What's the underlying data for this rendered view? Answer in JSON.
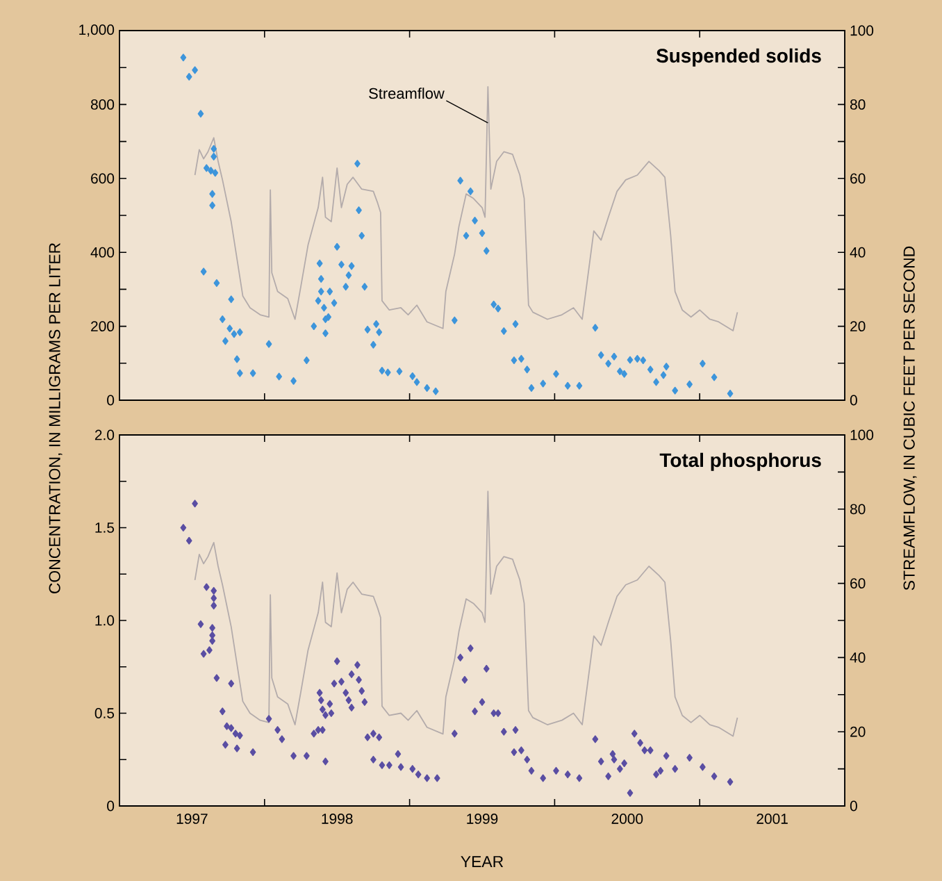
{
  "chart_data": [
    {
      "type": "scatter",
      "title": "Suspended solids",
      "ylabel": "CONCENTRATION, IN MILLIGRAMS PER LITER",
      "y2label": "STREAMFLOW, IN CUBIC FEET PER SECOND",
      "tick_labels": "y",
      "xlim": [
        1997,
        2002
      ],
      "xticks": [
        {
          "value": 1998,
          "label": null
        },
        {
          "value": 1999,
          "label": null
        },
        {
          "value": 2000,
          "label": null
        },
        {
          "value": 2001,
          "label": null
        }
      ],
      "ylim": [
        0,
        1000
      ],
      "yticks": [
        0,
        {
          "value": 100,
          "label": null
        },
        200,
        {
          "value": 300,
          "label": null
        },
        400,
        {
          "value": 500,
          "label": null
        },
        600,
        {
          "value": 700,
          "label": null
        },
        800,
        {
          "value": 900,
          "label": null
        },
        {
          "value": 1000,
          "label": "1,000"
        }
      ],
      "y2lim": [
        0,
        100
      ],
      "y2ticks": [
        0,
        {
          "value": 10,
          "label": null
        },
        20,
        {
          "value": 30,
          "label": null
        },
        40,
        {
          "value": 50,
          "label": null
        },
        60,
        {
          "value": 70,
          "label": null
        },
        80,
        {
          "value": 90,
          "label": null
        },
        100
      ],
      "series": [
        {
          "marker": "diamond",
          "color": "#3d95db",
          "x": [
            1997.44,
            1997.48,
            1997.52,
            1997.56,
            1997.65,
            1997.65,
            1997.6,
            1997.63,
            1997.66,
            1997.64,
            1997.64,
            1997.58,
            1997.67,
            1997.77,
            1997.71,
            1997.76,
            1997.79,
            1997.83,
            1997.73,
            1997.81,
            1997.83,
            1997.92,
            1998.03,
            1998.1,
            1998.2,
            1998.29,
            1998.34,
            1998.38,
            1998.39,
            1998.39,
            1998.37,
            1998.41,
            1998.42,
            1998.42,
            1998.44,
            1998.45,
            1998.48,
            1998.5,
            1998.53,
            1998.6,
            1998.58,
            1998.56,
            1998.64,
            1998.65,
            1998.67,
            1998.69,
            1998.71,
            1998.75,
            1998.77,
            1998.79,
            1998.81,
            1998.85,
            1998.93,
            1999.02,
            1999.05,
            1999.12,
            1999.18,
            1999.31,
            1999.35,
            1999.42,
            1999.45,
            1999.39,
            1999.5,
            1999.53,
            1999.58,
            1999.61,
            1999.65,
            1999.73,
            1999.72,
            1999.77,
            1999.81,
            1999.84,
            1999.92,
            2000.01,
            2000.09,
            2000.17,
            2000.28,
            2000.32,
            2000.37,
            2000.41,
            2000.45,
            2000.48,
            2000.52,
            2000.57,
            2000.61,
            2000.66,
            2000.7,
            2000.75,
            2000.77,
            2000.83,
            2000.93,
            2001.02,
            2001.1,
            2001.21
          ],
          "values": [
            927,
            875,
            893,
            775,
            680,
            659,
            628,
            621,
            615,
            558,
            527,
            348,
            317,
            273,
            219,
            194,
            179,
            184,
            160,
            111,
            73,
            73,
            152,
            64,
            52,
            108,
            200,
            370,
            328,
            294,
            269,
            250,
            219,
            181,
            225,
            294,
            263,
            415,
            367,
            363,
            338,
            307,
            640,
            514,
            445,
            307,
            191,
            150,
            206,
            184,
            80,
            75,
            78,
            65,
            49,
            33,
            24,
            216,
            594,
            565,
            486,
            445,
            452,
            404,
            259,
            248,
            187,
            206,
            108,
            112,
            83,
            33,
            45,
            71,
            39,
            39,
            196,
            122,
            99,
            118,
            78,
            71,
            109,
            112,
            108,
            83,
            49,
            68,
            91,
            26,
            43,
            99,
            62,
            18
          ]
        },
        {
          "type": "line",
          "axis": "y2",
          "marker": "none",
          "name": "Streamflow",
          "color": "#b3abab",
          "x": [
            1997.52,
            1997.55,
            1997.58,
            1997.61,
            1997.65,
            1997.68,
            1997.71,
            1997.77,
            1997.85,
            1997.9,
            1997.97,
            1998.03,
            1998.04,
            1998.05,
            1998.09,
            1998.16,
            1998.21,
            1998.25,
            1998.3,
            1998.37,
            1998.4,
            1998.42,
            1998.46,
            1998.5,
            1998.53,
            1998.57,
            1998.61,
            1998.67,
            1998.75,
            1998.78,
            1998.8,
            1998.81,
            1998.86,
            1998.94,
            1998.99,
            1999.05,
            1999.12,
            1999.23,
            1999.25,
            1999.31,
            1999.34,
            1999.39,
            1999.44,
            1999.5,
            1999.52,
            1999.54,
            1999.56,
            1999.6,
            1999.65,
            1999.71,
            1999.76,
            1999.79,
            1999.82,
            1999.85,
            1999.95,
            2000.05,
            2000.13,
            2000.19,
            2000.27,
            2000.32,
            2000.37,
            2000.43,
            2000.49,
            2000.57,
            2000.65,
            2000.72,
            2000.76,
            2000.8,
            2000.83,
            2000.88,
            2000.94,
            2001.0,
            2001.07,
            2001.13,
            2001.23,
            2001.26
          ],
          "values": [
            60.9,
            67.8,
            65.3,
            67.2,
            71,
            64.6,
            59.6,
            48.3,
            28.2,
            25,
            23.1,
            22.5,
            56.9,
            34.5,
            29.4,
            27.5,
            21.9,
            30.7,
            42,
            52.1,
            60.3,
            49.5,
            48.3,
            62.8,
            52.1,
            58.4,
            60.3,
            57.1,
            56.5,
            53.3,
            50.8,
            26.9,
            24.4,
            25,
            23.1,
            25.7,
            21.2,
            19.4,
            29.4,
            39.5,
            47,
            55.8,
            54.6,
            52.1,
            49.5,
            84.8,
            57.1,
            64.6,
            67.2,
            66.5,
            60.9,
            54.6,
            25.7,
            23.8,
            21.9,
            23.1,
            25,
            21.9,
            45.8,
            43.3,
            49.5,
            56.5,
            59.6,
            60.9,
            64.6,
            62.1,
            60.3,
            44.5,
            29.4,
            24.4,
            22.5,
            24.4,
            21.9,
            21.2,
            18.8,
            23.8
          ]
        }
      ]
    },
    {
      "type": "scatter",
      "title": "Total phosphorus",
      "xlabel": "YEAR",
      "xlim": [
        1997,
        2002
      ],
      "xticks": [
        {
          "value": 1997.5,
          "label": "1997"
        },
        {
          "value": 1998,
          "label": null
        },
        {
          "value": 1998.5,
          "label": "1998"
        },
        {
          "value": 1999,
          "label": null
        },
        {
          "value": 1999.5,
          "label": "1999"
        },
        {
          "value": 2000,
          "label": null
        },
        {
          "value": 2000.5,
          "label": "2000"
        },
        {
          "value": 2001,
          "label": null
        },
        {
          "value": 2001.5,
          "label": "2001"
        }
      ],
      "ylim": [
        0,
        2.0
      ],
      "yticks": [
        0,
        {
          "value": 0.25,
          "label": null
        },
        0.5,
        {
          "value": 0.75,
          "label": null
        },
        {
          "value": 1.0,
          "label": "1.0"
        },
        {
          "value": 1.25,
          "label": null
        },
        1.5,
        {
          "value": 1.75,
          "label": null
        },
        {
          "value": 2.0,
          "label": "2.0"
        }
      ],
      "y2lim": [
        0,
        100
      ],
      "y2ticks": [
        0,
        {
          "value": 10,
          "label": null
        },
        20,
        {
          "value": 30,
          "label": null
        },
        40,
        {
          "value": 50,
          "label": null
        },
        60,
        {
          "value": 70,
          "label": null
        },
        80,
        {
          "value": 90,
          "label": null
        },
        100
      ],
      "series": [
        {
          "marker": "diamond",
          "color": "#5a4ea3",
          "x": [
            1997.44,
            1997.48,
            1997.52,
            1997.6,
            1997.65,
            1997.65,
            1997.65,
            1997.56,
            1997.64,
            1997.64,
            1997.64,
            1997.62,
            1997.58,
            1997.67,
            1997.77,
            1997.71,
            1997.74,
            1997.77,
            1997.8,
            1997.83,
            1997.73,
            1997.81,
            1997.92,
            1998.03,
            1998.09,
            1998.12,
            1998.2,
            1998.29,
            1998.34,
            1998.37,
            1998.4,
            1998.38,
            1998.39,
            1998.4,
            1998.42,
            1998.42,
            1998.45,
            1998.46,
            1998.48,
            1998.53,
            1998.5,
            1998.56,
            1998.58,
            1998.6,
            1998.6,
            1998.64,
            1998.65,
            1998.67,
            1998.69,
            1998.71,
            1998.75,
            1998.79,
            1998.75,
            1998.81,
            1998.86,
            1998.92,
            1998.94,
            1999.02,
            1999.06,
            1999.12,
            1999.19,
            1999.31,
            1999.35,
            1999.38,
            1999.42,
            1999.45,
            1999.5,
            1999.53,
            1999.58,
            1999.61,
            1999.65,
            1999.73,
            1999.72,
            1999.77,
            1999.81,
            1999.84,
            1999.92,
            2000.01,
            2000.09,
            2000.17,
            2000.28,
            2000.32,
            2000.37,
            2000.4,
            2000.41,
            2000.45,
            2000.48,
            2000.52,
            2000.55,
            2000.59,
            2000.62,
            2000.66,
            2000.7,
            2000.73,
            2000.77,
            2000.83,
            2000.93,
            2001.02,
            2001.1,
            2001.21
          ],
          "values": [
            1.5,
            1.43,
            1.63,
            1.18,
            1.16,
            1.12,
            1.08,
            0.98,
            0.96,
            0.92,
            0.89,
            0.84,
            0.82,
            0.69,
            0.66,
            0.51,
            0.43,
            0.42,
            0.39,
            0.38,
            0.33,
            0.31,
            0.29,
            0.47,
            0.41,
            0.36,
            0.27,
            0.27,
            0.39,
            0.41,
            0.41,
            0.61,
            0.57,
            0.52,
            0.49,
            0.24,
            0.55,
            0.5,
            0.66,
            0.67,
            0.78,
            0.61,
            0.57,
            0.71,
            0.53,
            0.76,
            0.68,
            0.62,
            0.56,
            0.37,
            0.39,
            0.37,
            0.25,
            0.22,
            0.22,
            0.28,
            0.21,
            0.2,
            0.17,
            0.15,
            0.15,
            0.39,
            0.8,
            0.68,
            0.85,
            0.51,
            0.56,
            0.74,
            0.5,
            0.5,
            0.4,
            0.41,
            0.29,
            0.3,
            0.25,
            0.19,
            0.15,
            0.19,
            0.17,
            0.15,
            0.36,
            0.24,
            0.16,
            0.28,
            0.25,
            0.2,
            0.23,
            0.07,
            0.39,
            0.34,
            0.3,
            0.3,
            0.17,
            0.19,
            0.27,
            0.2,
            0.26,
            0.21,
            0.16,
            0.13
          ]
        },
        {
          "type": "line",
          "axis": "y2",
          "marker": "none",
          "color": "#b3abab",
          "x": [
            1997.52,
            1997.55,
            1997.58,
            1997.61,
            1997.65,
            1997.68,
            1997.71,
            1997.77,
            1997.85,
            1997.9,
            1997.97,
            1998.03,
            1998.04,
            1998.05,
            1998.09,
            1998.16,
            1998.21,
            1998.25,
            1998.3,
            1998.37,
            1998.4,
            1998.42,
            1998.46,
            1998.5,
            1998.53,
            1998.57,
            1998.61,
            1998.67,
            1998.75,
            1998.78,
            1998.8,
            1998.81,
            1998.86,
            1998.94,
            1998.99,
            1999.05,
            1999.12,
            1999.23,
            1999.25,
            1999.31,
            1999.34,
            1999.39,
            1999.44,
            1999.5,
            1999.52,
            1999.54,
            1999.56,
            1999.6,
            1999.65,
            1999.71,
            1999.76,
            1999.79,
            1999.82,
            1999.85,
            1999.95,
            2000.05,
            2000.13,
            2000.19,
            2000.27,
            2000.32,
            2000.37,
            2000.43,
            2000.49,
            2000.57,
            2000.65,
            2000.72,
            2000.76,
            2000.8,
            2000.83,
            2000.88,
            2000.94,
            2001.0,
            2001.07,
            2001.13,
            2001.23,
            2001.26
          ],
          "values": [
            60.9,
            67.8,
            65.3,
            67.2,
            71,
            64.6,
            59.6,
            48.3,
            28.2,
            25,
            23.1,
            22.5,
            56.9,
            34.5,
            29.4,
            27.5,
            21.9,
            30.7,
            42,
            52.1,
            60.3,
            49.5,
            48.3,
            62.8,
            52.1,
            58.4,
            60.3,
            57.1,
            56.5,
            53.3,
            50.8,
            26.9,
            24.4,
            25,
            23.1,
            25.7,
            21.2,
            19.4,
            29.4,
            39.5,
            47,
            55.8,
            54.6,
            52.1,
            49.5,
            84.8,
            57.1,
            64.6,
            67.2,
            66.5,
            60.9,
            54.6,
            25.7,
            23.8,
            21.9,
            23.1,
            25,
            21.9,
            45.8,
            43.3,
            49.5,
            56.5,
            59.6,
            60.9,
            64.6,
            62.1,
            60.3,
            44.5,
            29.4,
            24.4,
            22.5,
            24.4,
            21.9,
            21.2,
            18.8,
            23.8
          ]
        }
      ]
    }
  ]
}
